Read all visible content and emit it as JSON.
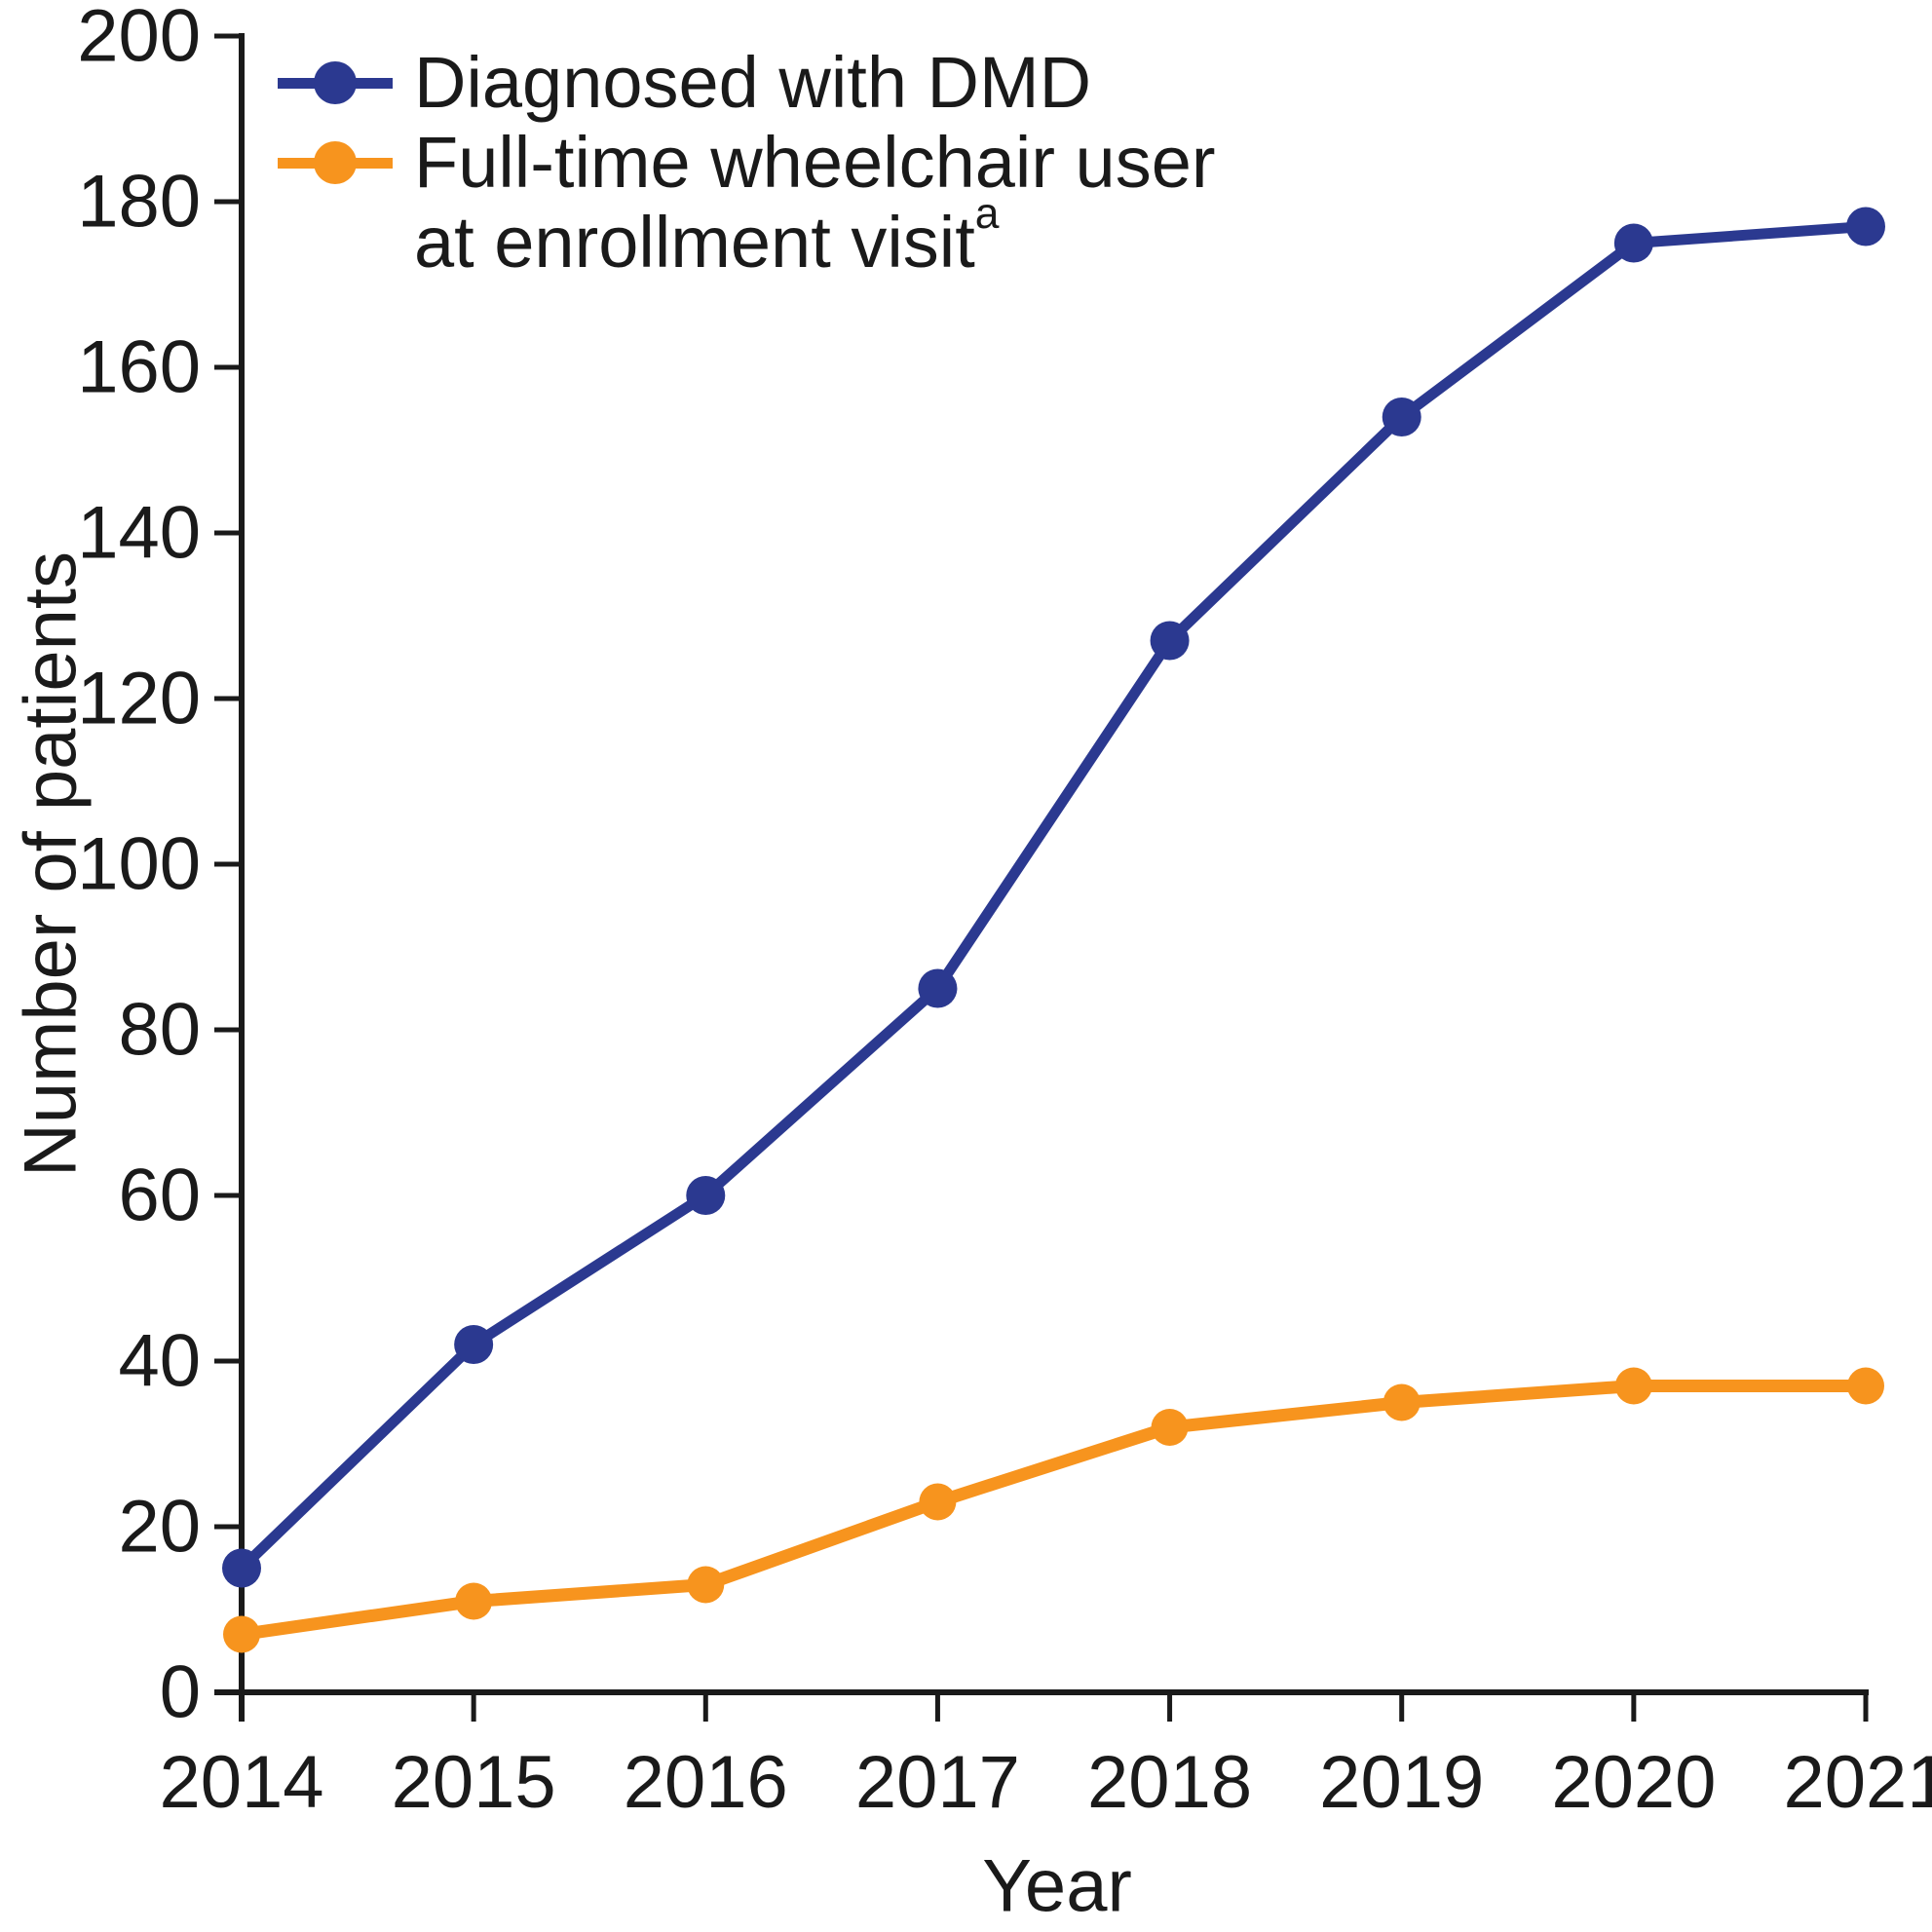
{
  "axes": {
    "ylabel": "Number of patients",
    "xlabel": "Year"
  },
  "legend": {
    "entries": [
      {
        "label_lines": [
          "Diagnosed with DMD"
        ],
        "superscript": "",
        "color": "#2b3990"
      },
      {
        "label_lines": [
          "Full-time wheelchair user",
          "at enrollment visit"
        ],
        "superscript": "a",
        "color": "#f7941e"
      }
    ]
  },
  "chart_data": {
    "type": "line",
    "x": [
      2014,
      2015,
      2016,
      2017,
      2018,
      2019,
      2020,
      2021
    ],
    "series": [
      {
        "name": "Diagnosed with DMD",
        "color": "#2b3990",
        "marker": "circle",
        "line_width": 11,
        "marker_radius": 20,
        "values": [
          15,
          42,
          60,
          85,
          127,
          154,
          175,
          177
        ]
      },
      {
        "name": "Full-time wheelchair user at enrollment visitᵃ",
        "color": "#f7941e",
        "marker": "circle",
        "line_width": 13,
        "marker_radius": 19,
        "values": [
          7,
          11,
          13,
          23,
          32,
          35,
          37,
          37
        ]
      }
    ],
    "title": "",
    "xlabel": "Year",
    "ylabel": "Number of patients",
    "ylim": [
      0,
      200
    ],
    "y_tick_step": 20,
    "x_tick_labels": [
      "2014",
      "2015",
      "2016",
      "2017",
      "2018",
      "2019",
      "2020",
      "2021"
    ],
    "grid": false,
    "legend_position": "top-left-inside",
    "axis_color": "#1a1a1a",
    "tick_label_font_px": 76
  }
}
